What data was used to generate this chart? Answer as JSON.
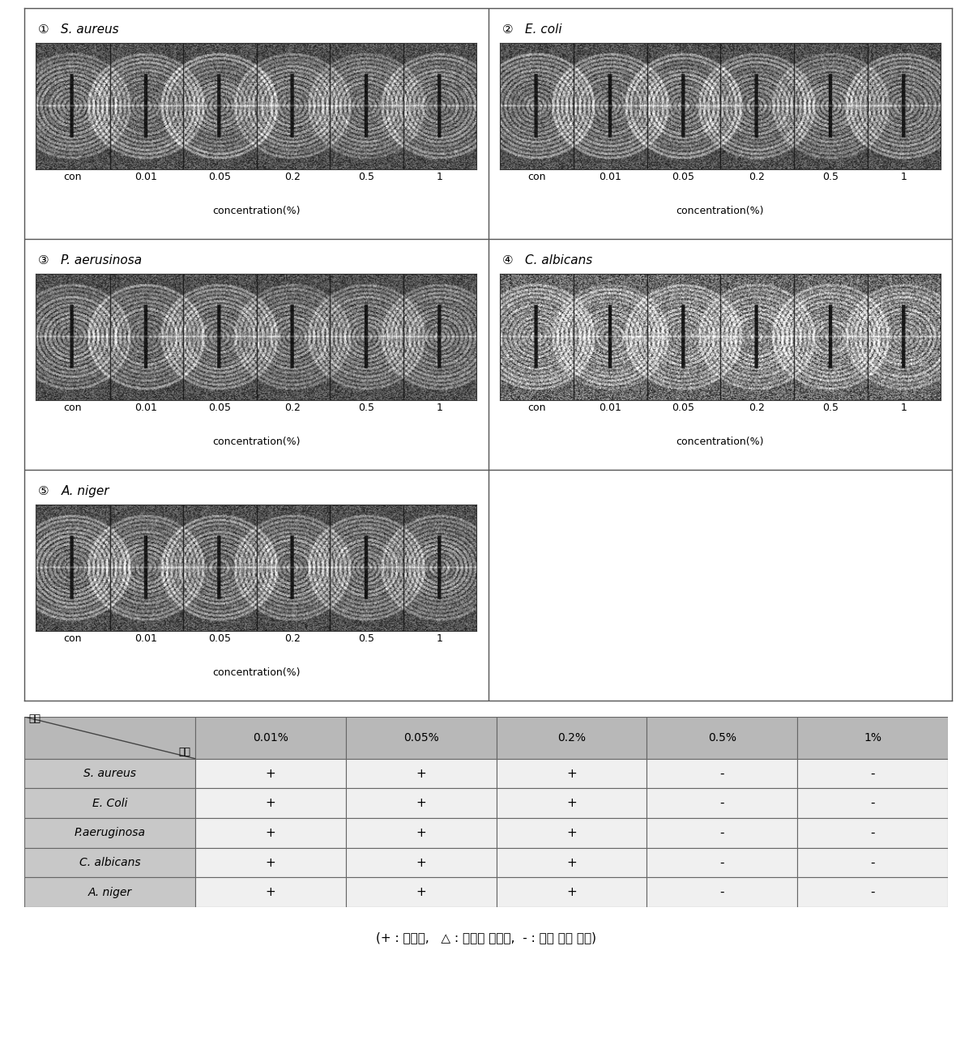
{
  "panels": [
    {
      "num": "①",
      "title": "S. aureus",
      "col": 0,
      "row": 0
    },
    {
      "num": "②",
      "title": "E. coli",
      "col": 1,
      "row": 0
    },
    {
      "num": "③",
      "title": "P. aerusinosa",
      "col": 0,
      "row": 1
    },
    {
      "num": "④",
      "title": "C. albicans",
      "col": 1,
      "row": 1
    },
    {
      "num": "⑤",
      "title": "A. niger",
      "col": 0,
      "row": 2
    }
  ],
  "xtick_labels": [
    "con",
    "0.01",
    "0.05",
    "0.2",
    "0.5",
    "1"
  ],
  "xlabel": "concentration(%)",
  "table_rows": [
    [
      "S. aureus",
      "+",
      "+",
      "+",
      "-",
      "-"
    ],
    [
      "E. Coli",
      "+",
      "+",
      "+",
      "-",
      "-"
    ],
    [
      "P.aeruginosa",
      "+",
      "+",
      "+",
      "-",
      "-"
    ],
    [
      "C. albicans",
      "+",
      "+",
      "+",
      "-",
      "-"
    ],
    [
      "A. niger",
      "+",
      "+",
      "+",
      "-",
      "-"
    ]
  ],
  "conc_labels": [
    "0.01%",
    "0.05%",
    "0.2%",
    "0.5%",
    "1%"
  ],
  "footnote": "(+ : 생장함,   △ : 생장이 저해됨,  - : 생장 하지 않음)",
  "border_color": "#555555",
  "table_header_bg": "#b8b8b8",
  "table_species_bg": "#c8c8c8",
  "table_data_bg": "#f0f0f0",
  "table_border_color": "#666666",
  "fig_bg": "#ffffff"
}
